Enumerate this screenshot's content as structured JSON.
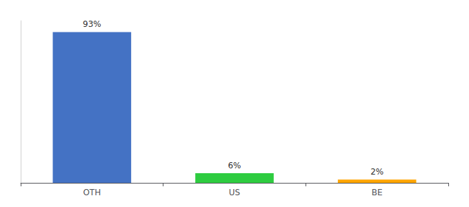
{
  "chart_data": {
    "type": "bar",
    "categories": [
      "OTH",
      "US",
      "BE"
    ],
    "values": [
      93,
      6,
      2
    ],
    "value_labels": [
      "93%",
      "6%",
      "2%"
    ],
    "data_labels": true,
    "colors": [
      "#4472C4",
      "#2ECC40",
      "#FFA500"
    ],
    "ylim": [
      0,
      100
    ],
    "grid": false,
    "tick_labels": "x"
  }
}
